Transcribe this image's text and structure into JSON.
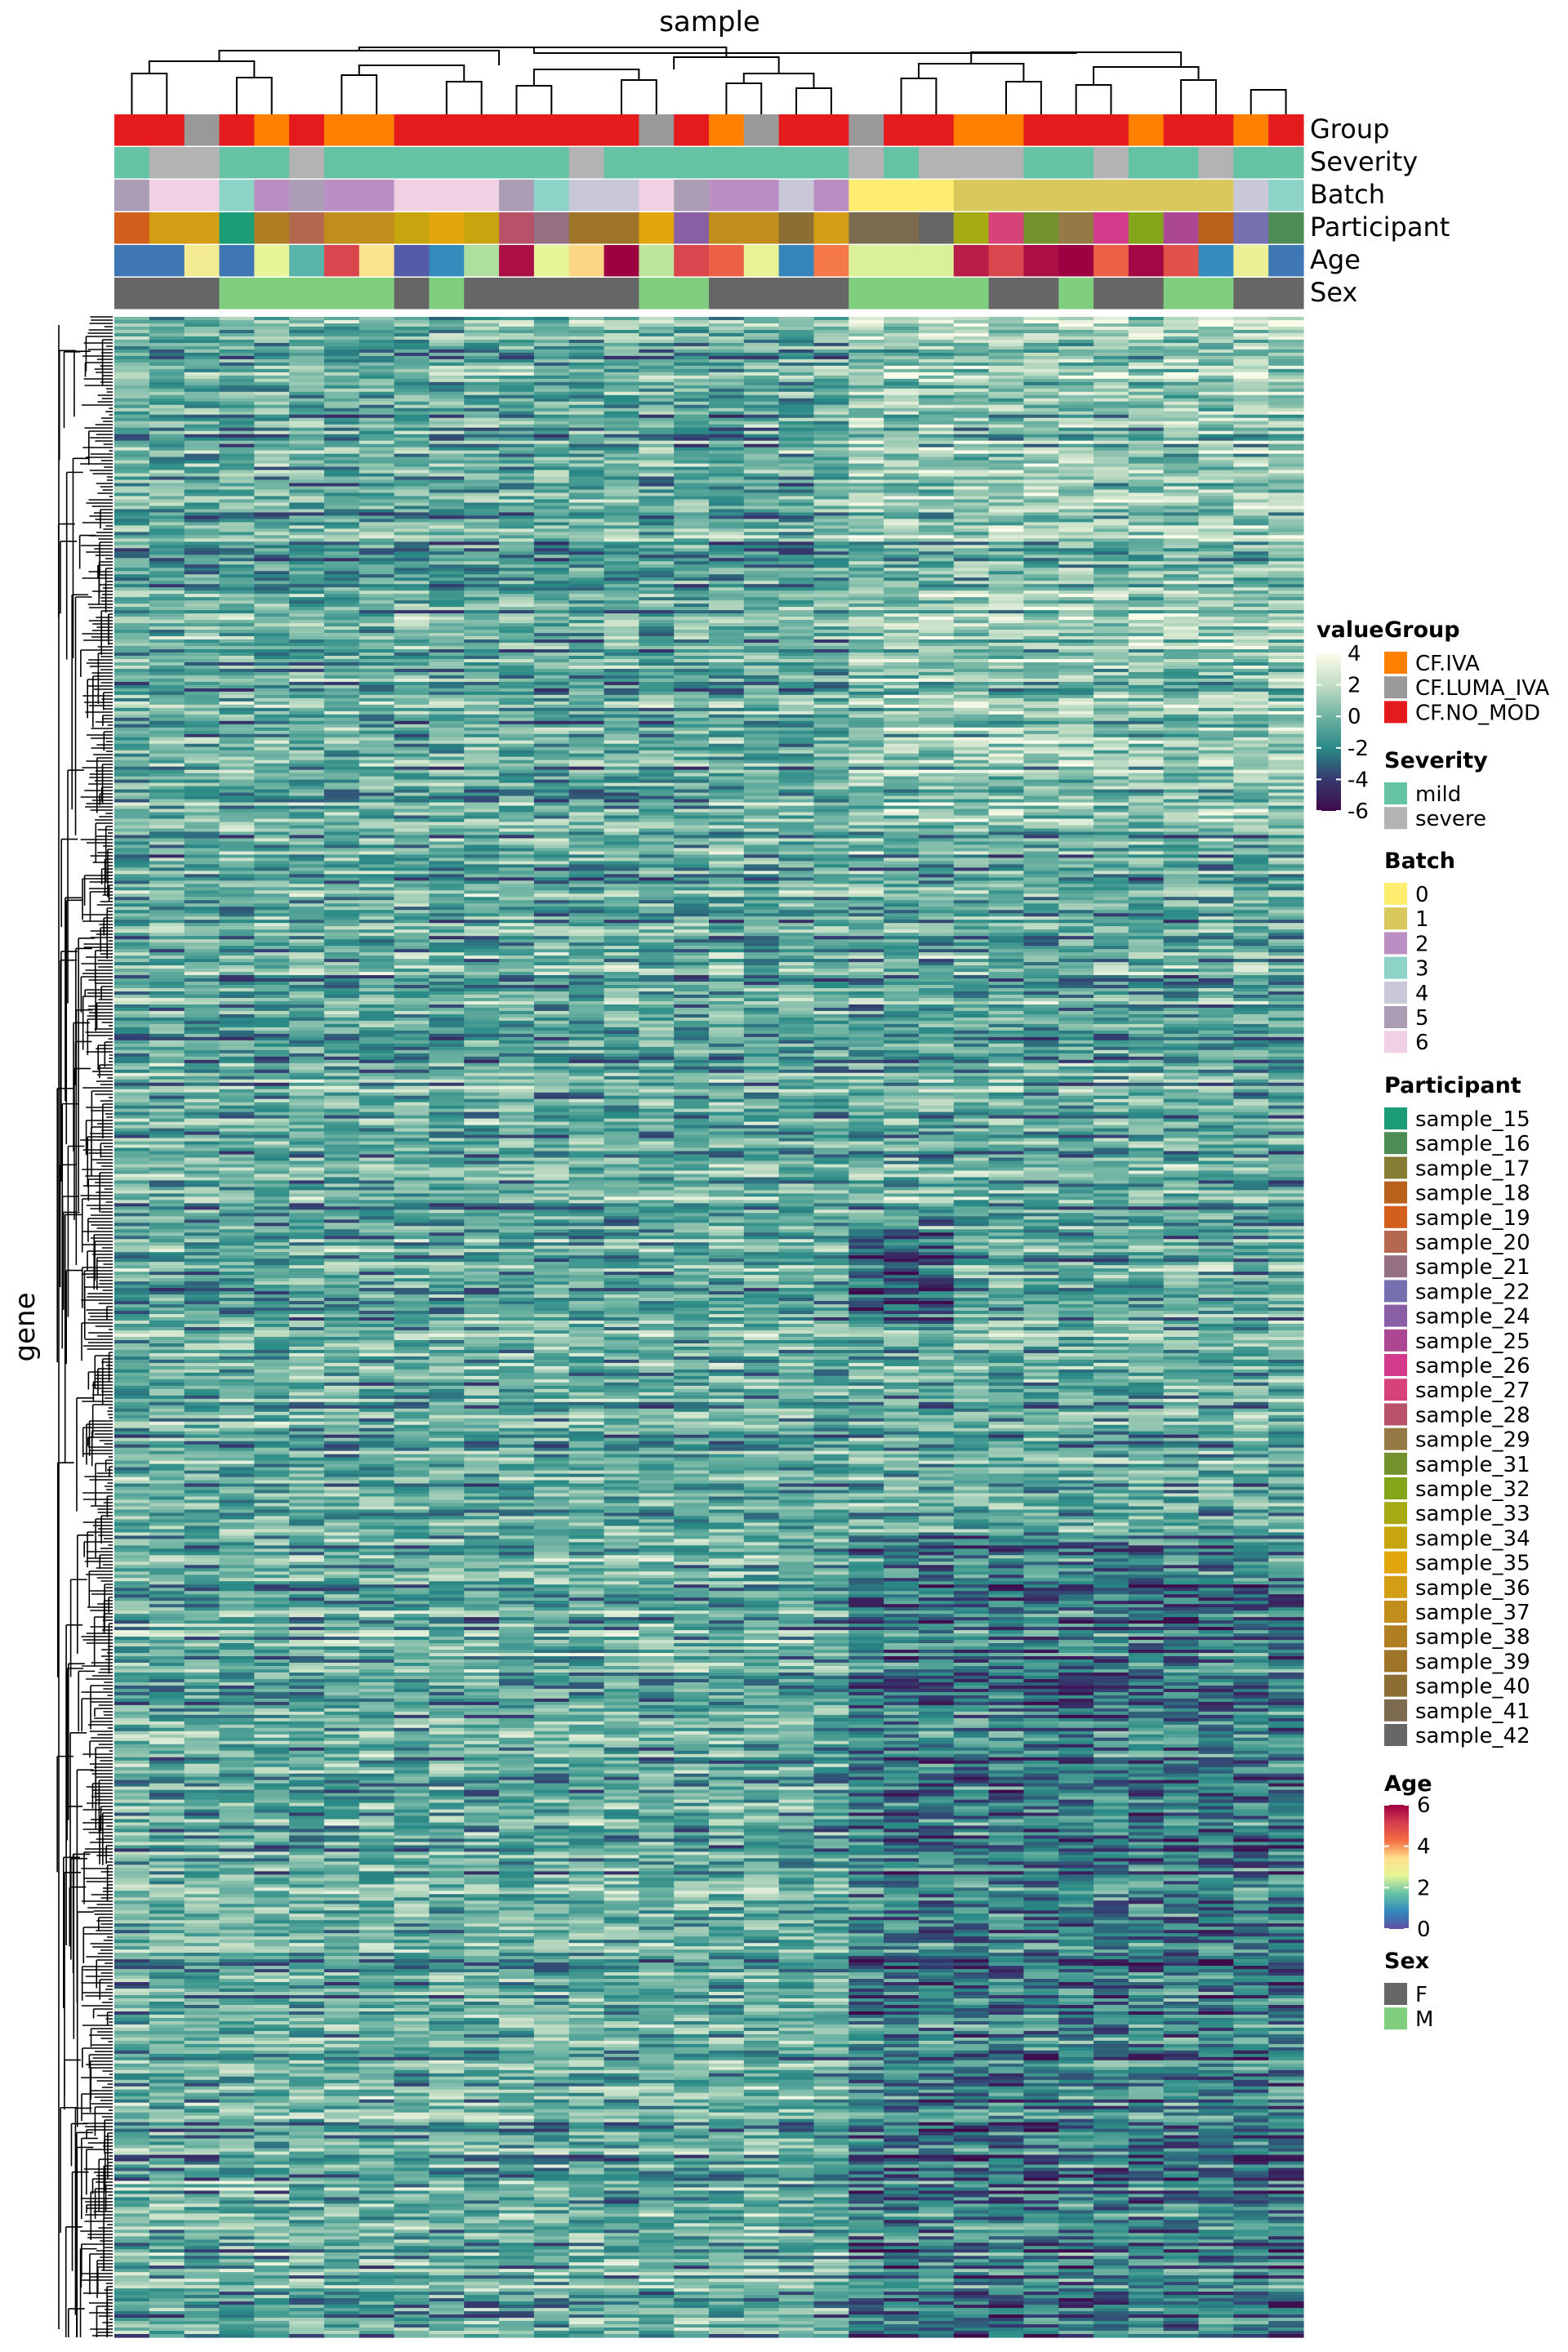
{
  "chart_data": {
    "type": "heatmap",
    "x_title": "sample",
    "y_title": "gene",
    "n_samples": 34,
    "colors": {
      "heat_scale": [
        "#3f0a4a",
        "#35396f",
        "#2a8a86",
        "#6fb3a3",
        "#c2ddc4",
        "#fbfcea"
      ],
      "dendrogram": "#000000"
    },
    "annotation_tracks": [
      {
        "label": "Group",
        "values": [
          2,
          2,
          1,
          2,
          0,
          2,
          0,
          0,
          2,
          2,
          2,
          2,
          2,
          2,
          2,
          1,
          2,
          0,
          1,
          2,
          2,
          1,
          2,
          2,
          0,
          0,
          2,
          2,
          2,
          0,
          2,
          2,
          0,
          2
        ]
      },
      {
        "label": "Severity",
        "values": [
          0,
          1,
          1,
          0,
          0,
          1,
          0,
          0,
          0,
          0,
          0,
          0,
          0,
          1,
          0,
          0,
          0,
          0,
          0,
          0,
          0,
          1,
          0,
          1,
          1,
          1,
          0,
          0,
          1,
          0,
          0,
          1,
          0,
          0
        ]
      },
      {
        "label": "Batch",
        "values": [
          5,
          6,
          6,
          3,
          2,
          5,
          2,
          2,
          6,
          6,
          6,
          5,
          3,
          4,
          4,
          6,
          5,
          2,
          2,
          4,
          2,
          0,
          0,
          0,
          1,
          1,
          1,
          1,
          1,
          1,
          1,
          1,
          4,
          3
        ]
      },
      {
        "label": "Participant",
        "values": [
          19,
          36,
          36,
          15,
          38,
          20,
          37,
          37,
          34,
          35,
          34,
          28,
          21,
          39,
          39,
          35,
          24,
          37,
          37,
          40,
          36,
          41,
          41,
          42,
          33,
          27,
          31,
          29,
          26,
          32,
          25,
          18,
          22,
          16
        ]
      },
      {
        "label": "Age",
        "values": [
          0.6,
          0.6,
          3.0,
          0.6,
          2.6,
          1.5,
          5.0,
          3.3,
          0.2,
          0.9,
          2.2,
          5.8,
          2.6,
          3.5,
          6.5,
          2.3,
          5.0,
          4.5,
          2.7,
          0.8,
          4.2,
          2.5,
          2.5,
          2.5,
          5.6,
          5.0,
          5.8,
          6.0,
          4.5,
          5.9,
          4.8,
          0.9,
          2.8,
          0.6
        ]
      },
      {
        "label": "Sex",
        "values": [
          0,
          0,
          0,
          1,
          1,
          1,
          1,
          1,
          0,
          1,
          0,
          0,
          0,
          0,
          0,
          1,
          1,
          0,
          0,
          0,
          0,
          1,
          1,
          1,
          1,
          0,
          0,
          1,
          0,
          0,
          1,
          1,
          0,
          0
        ]
      }
    ],
    "legend": {
      "value": {
        "title": "value",
        "ticks": [
          4,
          2,
          0,
          -2,
          -4,
          -6
        ],
        "range": [
          -6,
          4
        ]
      },
      "Group": {
        "title": "Group",
        "entries": [
          {
            "label": "CF.IVA",
            "color": "#ff7f00"
          },
          {
            "label": "CF.LUMA_IVA",
            "color": "#999999"
          },
          {
            "label": "CF.NO_MOD",
            "color": "#e41a1c"
          }
        ]
      },
      "Severity": {
        "title": "Severity",
        "entries": [
          {
            "label": "mild",
            "color": "#66c2a5"
          },
          {
            "label": "severe",
            "color": "#b3b3b3"
          }
        ]
      },
      "Batch": {
        "title": "Batch",
        "entries": [
          {
            "label": "0",
            "color": "#ffed6f"
          },
          {
            "label": "1",
            "color": "#d9c85c"
          },
          {
            "label": "2",
            "color": "#bc8fc4"
          },
          {
            "label": "3",
            "color": "#8dd3c7"
          },
          {
            "label": "4",
            "color": "#c8c8d8"
          },
          {
            "label": "5",
            "color": "#aa9db5"
          },
          {
            "label": "6",
            "color": "#f1d0e4"
          }
        ]
      },
      "Participant": {
        "title": "Participant",
        "entries": [
          {
            "label": "sample_15",
            "color": "#1b9e77"
          },
          {
            "label": "sample_16",
            "color": "#4e8c55"
          },
          {
            "label": "sample_17",
            "color": "#877c33"
          },
          {
            "label": "sample_18",
            "color": "#b8621e"
          },
          {
            "label": "sample_19",
            "color": "#d2601c"
          },
          {
            "label": "sample_20",
            "color": "#b3684f"
          },
          {
            "label": "sample_21",
            "color": "#957083"
          },
          {
            "label": "sample_22",
            "color": "#7571b0"
          },
          {
            "label": "sample_24",
            "color": "#8a5ea5"
          },
          {
            "label": "sample_25",
            "color": "#ac4893"
          },
          {
            "label": "sample_26",
            "color": "#d43a8b"
          },
          {
            "label": "sample_27",
            "color": "#d6427a"
          },
          {
            "label": "sample_28",
            "color": "#b85268"
          },
          {
            "label": "sample_29",
            "color": "#967a45"
          },
          {
            "label": "sample_31",
            "color": "#73922e"
          },
          {
            "label": "sample_32",
            "color": "#82a51a"
          },
          {
            "label": "sample_33",
            "color": "#a7aa13"
          },
          {
            "label": "sample_34",
            "color": "#c7a50e"
          },
          {
            "label": "sample_35",
            "color": "#e1a70a"
          },
          {
            "label": "sample_36",
            "color": "#d39d14"
          },
          {
            "label": "sample_37",
            "color": "#c18e1c"
          },
          {
            "label": "sample_38",
            "color": "#b07f22"
          },
          {
            "label": "sample_39",
            "color": "#9e7428"
          },
          {
            "label": "sample_40",
            "color": "#8c6e34"
          },
          {
            "label": "sample_41",
            "color": "#7c6b4f"
          },
          {
            "label": "sample_42",
            "color": "#666666"
          }
        ]
      },
      "Age": {
        "title": "Age",
        "ticks": [
          6,
          4,
          2,
          0
        ],
        "range": [
          0,
          6
        ],
        "colors": [
          "#5e4fa2",
          "#3288bd",
          "#66c2a5",
          "#e6f598",
          "#fee08b",
          "#f46d43",
          "#d53e4f",
          "#9e0142"
        ]
      },
      "Sex": {
        "title": "Sex",
        "entries": [
          {
            "label": "F",
            "color": "#666666"
          },
          {
            "label": "M",
            "color": "#7fcf7f"
          }
        ]
      }
    }
  }
}
